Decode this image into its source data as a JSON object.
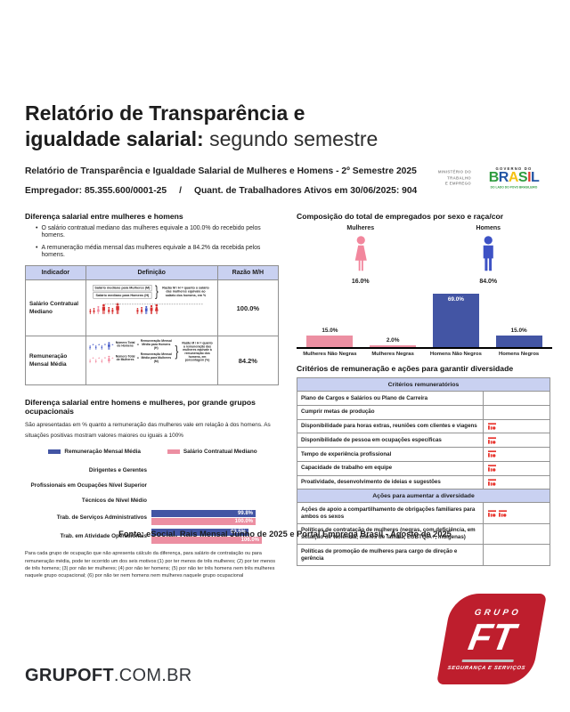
{
  "title": {
    "line1": "Relatório de Transparência e",
    "line2_bold": "igualdade salarial:",
    "line2_light": "segundo semestre"
  },
  "header": {
    "line1": "Relatório de Transparência e Igualdade Salarial de Mulheres e Homens - 2º Semestre 2025",
    "employer": "Empregador: 85.355.600/0001-25",
    "separator": "/",
    "workers": "Quant. de Trabalhadores Ativos em 30/06/2025: 904",
    "ministry_lines": [
      "MINISTÉRIO DO",
      "TRABALHO",
      "E EMPREGO"
    ],
    "gov": {
      "top": "GOVERNO DO",
      "name": "BRASIL",
      "letter_colors": [
        "#2e9c3f",
        "#2456a5",
        "#f5c212",
        "#2e9c3f",
        "#e23b30",
        "#2456a5"
      ],
      "tagline": "DO LADO DO POVO BRASILEIRO"
    }
  },
  "pay_gap": {
    "section_title": "Diferença salarial entre mulheres e homens",
    "bullets": [
      "O salário contratual mediano das mulheres equivale a 100.0% do recebido pelos homens.",
      "A remuneração média mensal das mulheres equivale a 84.2% da recebida pelos homens."
    ],
    "table": {
      "headers": [
        "Indicador",
        "Definição",
        "Razão M/H"
      ],
      "rows": [
        {
          "indicator": "Salário Contratual Mediano",
          "ratio": "100.0%",
          "formula_box1": "Salário mediano para Mulheres (M)",
          "formula_box2": "Salário mediano para Homens (H)",
          "note": "Razão M / H = quanto o salário das mulheres equivale ao salário dos homens, em %"
        },
        {
          "indicator": "Remuneração Mensal Média",
          "ratio": "84.2%",
          "men_count": "Número Total de Homens",
          "men_avg": "Remuneração Mensal Média para Homens (H)",
          "women_count": "Número Total de Mulheres",
          "women_avg": "Remuneração Mensal Média para Mulheres (M)",
          "note": "Razão M / H = quanto a remuneração das mulheres equivale à remuneração dos homens, em porcentagem (%)"
        }
      ]
    }
  },
  "occupational": {
    "section_title": "Diferença salarial entre homens e mulheres, por grande grupos ocupacionais",
    "subtitle": "São apresentadas em % quanto a remuneração das mulheres vale em relação à dos homens. As situações positivas mostram valores maiores ou iguais a 100%",
    "footnote": "Para cada grupo de ocupação que não apresenta cálculo da diferença, para salário de contratação ou para remuneração média, pode ter ocorrido um dos seis motivos:(1) por ter menos de três mulheres; (2) por ter menos de três homens; (3) por não ter mulheres; (4) por não ter homens; (5) por não ter três homens nem três mulheres naquele grupo ocupacional; (6) por não ter nem homens nem mulheres naquele grupo ocupacional"
  },
  "composition": {
    "section_title": "Composição do total de empregados por sexo e raça/cor",
    "female_label": "Mulheres",
    "female_pct": "16.0%",
    "male_label": "Homens",
    "male_pct": "84.0%"
  },
  "criteria": {
    "section_title": "Critérios de remuneração e ações para garantir diversidade",
    "sections": [
      {
        "header": "Critérios remuneratórios",
        "rows": [
          {
            "label": "Plano de Cargos e Salários ou Plano de Carreira",
            "flags": 0
          },
          {
            "label": "Cumprir metas de produção",
            "flags": 0
          },
          {
            "label": "Disponibilidade para horas extras, reuniões com clientes e viagens",
            "flags": 1
          },
          {
            "label": "Disponibilidade de pessoa em ocupações específicas",
            "flags": 1
          },
          {
            "label": "Tempo de experiência profissional",
            "flags": 1
          },
          {
            "label": "Capacidade de trabalho em equipe",
            "flags": 1
          },
          {
            "label": "Proatividade, desenvolvimento de ideias e sugestões",
            "flags": 1
          }
        ]
      },
      {
        "header": "Ações para aumentar a diversidade",
        "rows": [
          {
            "label": "Ações de apoio a compartilhamento de obrigações familiares para ambos os sexos",
            "flags": 2
          },
          {
            "label": "Políticas de contratação de mulheres (negras, com deficiência, em situação de violência, chefes de família, LGBTQIA+, indígenas)",
            "flags": 0
          },
          {
            "label": "Políticas de promoção de mulheres para cargo de direção e gerência",
            "flags": 0
          }
        ]
      }
    ]
  },
  "source": "Fonte: eSocial. Rais Mensal Junho de 2025 e Portal Emprega Brasil - Agosto de 2025",
  "footer": {
    "site_bold": "GRUPOFT",
    "site_light": ".COM.BR",
    "logo_grupo": "GRUPO",
    "logo_ft": "FT",
    "logo_tagline": "SEGURANÇA E SERVIÇOS"
  },
  "colors": {
    "blue_bar": "#4355a4",
    "pink_bar": "#ec8fa2",
    "male_icon": "#3d52c5",
    "female_icon": "#f2879d",
    "red_figure": "#d62f2f",
    "flag_red": "#e8352e",
    "table_header_fill": "#c9d1f1",
    "logo_red": "#be1e2d"
  },
  "chart_data": [
    {
      "type": "bar",
      "orientation": "horizontal",
      "title": "Diferença salarial entre homens e mulheres, por grande grupos ocupacionais",
      "categories": [
        "Dirigentes e Gerentes",
        "Profissionais em Ocupações Nível Superior",
        "Técnicos de Nível Médio",
        "Trab. de Serviços Administrativos",
        "Trab. em Atividade Operacionais"
      ],
      "series": [
        {
          "name": "Remuneração Mensal Média",
          "color": "#4355a4",
          "values": [
            null,
            null,
            null,
            99.8,
            93.5
          ]
        },
        {
          "name": "Salário Contratual Mediano",
          "color": "#ec8fa2",
          "values": [
            null,
            null,
            null,
            100.0,
            106.0
          ]
        }
      ],
      "unit": "%",
      "legend_position": "top",
      "xlim": [
        0,
        110
      ]
    },
    {
      "type": "bar",
      "orientation": "vertical",
      "title": "Composição do total de empregados por sexo e raça/cor",
      "categories": [
        "Mulheres Não Negras",
        "Mulheres Negras",
        "Homens Não Negros",
        "Homens Negros"
      ],
      "values": [
        15.0,
        2.0,
        69.0,
        15.0
      ],
      "colors": [
        "#ec8fa2",
        "#ec8fa2",
        "#4355a4",
        "#4355a4"
      ],
      "unit": "%",
      "ylim": [
        0,
        75
      ]
    }
  ]
}
